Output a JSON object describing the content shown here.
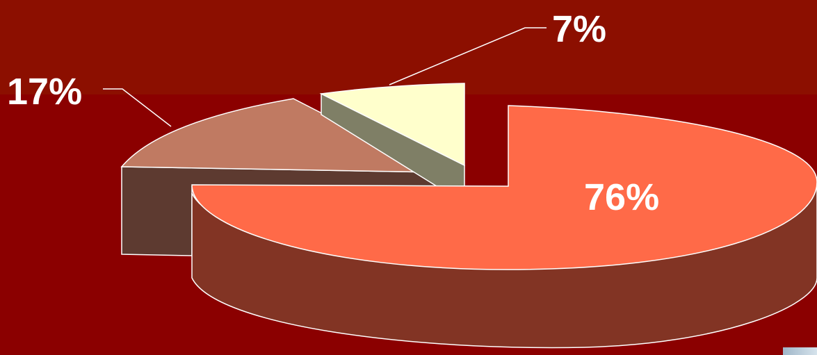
{
  "chart_data": {
    "type": "pie",
    "title": "",
    "slices": [
      {
        "label": "76%",
        "value": 76,
        "color": "#ff6a48",
        "side_color": "#823424"
      },
      {
        "label": "17%",
        "value": 17,
        "color": "#c07a62",
        "side_color": "#5d3a30"
      },
      {
        "label": "7%",
        "value": 7,
        "color": "#ffffcc",
        "side_color": "#7f7f66"
      }
    ],
    "exploded": true,
    "style": "3d"
  },
  "colors": {
    "background": "#8b0000",
    "top_band": "#8c0f00",
    "outline": "#ffffff"
  }
}
